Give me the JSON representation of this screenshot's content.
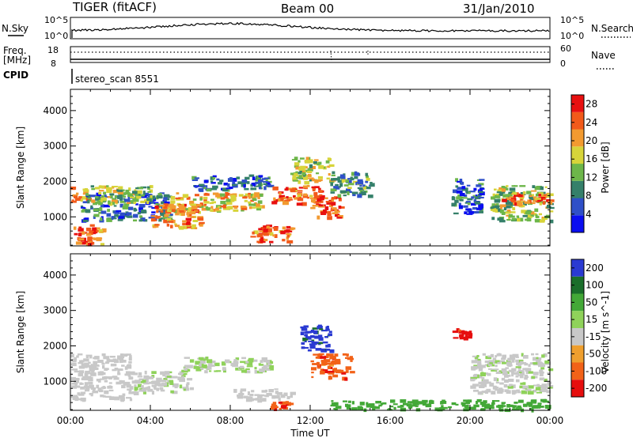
{
  "header": {
    "radar": "TIGER (fitACF)",
    "beam": "Beam 00",
    "date": "31/Jan/2010"
  },
  "housekeeping": {
    "nsky_label": "N.Sky",
    "nsky_ticks": [
      "10^5",
      "10^0"
    ],
    "nsearch_label": "N.Search",
    "nsearch_ticks": [
      "10^5",
      "10^0"
    ],
    "freq_label": "Freq.",
    "freq_unit": "[MHz]",
    "freq_ticks": [
      "18",
      "8"
    ],
    "nave_label": "Nave",
    "nave_ticks": [
      "60",
      "0"
    ],
    "cpid_label": "CPID",
    "cpid_value": "stereo_scan 8551"
  },
  "chart_data": [
    {
      "type": "heatmap",
      "title": "",
      "parameter": "Power",
      "xlabel": "Time UT",
      "ylabel": "Slant Range [km]",
      "x_tick_labels": [
        "00:00",
        "04:00",
        "08:00",
        "12:00",
        "16:00",
        "20:00",
        "00:00"
      ],
      "xlim_hours": [
        0,
        24
      ],
      "y_ticks": [
        1000,
        2000,
        3000,
        4000
      ],
      "ylim": [
        180,
        4600
      ],
      "colorbar": {
        "label": "Power [dB]",
        "ticks": [
          4,
          8,
          12,
          16,
          20,
          24,
          28
        ],
        "range": [
          0,
          30
        ],
        "colors": [
          "#0a0ef0",
          "#2f50c8",
          "#35806a",
          "#6db64a",
          "#d7d43a",
          "#f29a30",
          "#f25a1a",
          "#e81010"
        ]
      },
      "echo_regions": [
        {
          "t": [
            0.0,
            1.6
          ],
          "r": [
            250,
            800
          ],
          "value": 24
        },
        {
          "t": [
            0.0,
            0.8
          ],
          "r": [
            1450,
            1900
          ],
          "value": 20
        },
        {
          "t": [
            0.5,
            5.0
          ],
          "r": [
            900,
            1700
          ],
          "value": 8
        },
        {
          "t": [
            1.0,
            4.0
          ],
          "r": [
            1400,
            1900
          ],
          "value": 14
        },
        {
          "t": [
            4.0,
            6.5
          ],
          "r": [
            700,
            1400
          ],
          "value": 22
        },
        {
          "t": [
            5.0,
            9.5
          ],
          "r": [
            1200,
            1700
          ],
          "value": 18
        },
        {
          "t": [
            6.0,
            10.0
          ],
          "r": [
            1800,
            2200
          ],
          "value": 8
        },
        {
          "t": [
            9.0,
            11.0
          ],
          "r": [
            300,
            800
          ],
          "value": 24
        },
        {
          "t": [
            10.0,
            12.5
          ],
          "r": [
            1400,
            1900
          ],
          "value": 24
        },
        {
          "t": [
            11.0,
            13.0
          ],
          "r": [
            2000,
            2700
          ],
          "value": 16
        },
        {
          "t": [
            12.0,
            13.5
          ],
          "r": [
            1000,
            1600
          ],
          "value": 26
        },
        {
          "t": [
            13.0,
            15.0
          ],
          "r": [
            1600,
            2300
          ],
          "value": 10
        },
        {
          "t": [
            19.0,
            20.5
          ],
          "r": [
            1100,
            2100
          ],
          "value": 8
        },
        {
          "t": [
            21.0,
            24.0
          ],
          "r": [
            900,
            1900
          ],
          "value": 14
        },
        {
          "t": [
            21.5,
            24.0
          ],
          "r": [
            1400,
            1700
          ],
          "value": 24
        }
      ]
    },
    {
      "type": "heatmap",
      "title": "",
      "parameter": "Velocity",
      "xlabel": "Time UT",
      "ylabel": "Slant Range [km]",
      "x_tick_labels": [
        "00:00",
        "04:00",
        "08:00",
        "12:00",
        "16:00",
        "20:00",
        "00:00"
      ],
      "xlim_hours": [
        0,
        24
      ],
      "y_ticks": [
        1000,
        2000,
        3000,
        4000
      ],
      "ylim": [
        180,
        4600
      ],
      "colorbar": {
        "label": "Velocity [m s^-1]",
        "tick_labels": [
          "200",
          "100",
          "50",
          "15",
          "-15",
          "-50",
          "-100",
          "-200"
        ],
        "colors": [
          "#2a3ad2",
          "#1a6e2a",
          "#43a837",
          "#8fd25a",
          "#c8c8c8",
          "#ef9f2e",
          "#f26218",
          "#e60e0e"
        ]
      },
      "echo_regions": [
        {
          "t": [
            0.0,
            3.0
          ],
          "r": [
            500,
            1800
          ],
          "value": -5
        },
        {
          "t": [
            3.0,
            6.0
          ],
          "r": [
            700,
            1300
          ],
          "value": 0
        },
        {
          "t": [
            5.5,
            10.0
          ],
          "r": [
            1300,
            1700
          ],
          "value": 5
        },
        {
          "t": [
            8.0,
            11.0
          ],
          "r": [
            500,
            800
          ],
          "value": -5
        },
        {
          "t": [
            10.0,
            11.0
          ],
          "r": [
            250,
            450
          ],
          "value": -90
        },
        {
          "t": [
            11.5,
            13.0
          ],
          "r": [
            1900,
            2600
          ],
          "value": 150
        },
        {
          "t": [
            12.0,
            14.0
          ],
          "r": [
            1100,
            1800
          ],
          "value": -80
        },
        {
          "t": [
            13.0,
            24.0
          ],
          "r": [
            220,
            500
          ],
          "value": 25
        },
        {
          "t": [
            19.0,
            20.0
          ],
          "r": [
            2200,
            2500
          ],
          "value": -150
        },
        {
          "t": [
            20.0,
            24.0
          ],
          "r": [
            700,
            1800
          ],
          "value": 0
        }
      ]
    }
  ]
}
